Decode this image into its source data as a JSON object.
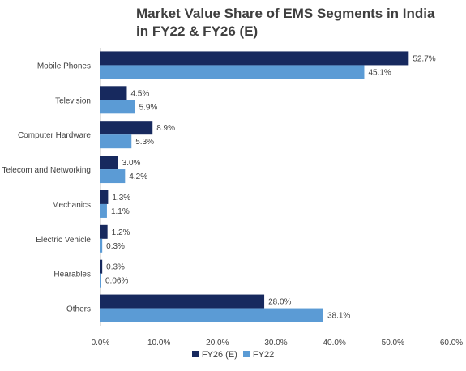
{
  "chart_data": {
    "type": "bar",
    "orientation": "horizontal",
    "title_lines": [
      "Market Value Share of EMS Segments in India",
      "in FY22 & FY26 (E)"
    ],
    "categories": [
      "Mobile Phones",
      "Television",
      "Computer Hardware",
      "Telecom and Networking",
      "Mechanics",
      "Electric Vehicle",
      "Hearables",
      "Others"
    ],
    "series": [
      {
        "name": "FY26 (E)",
        "color": "#17295e",
        "values": [
          52.7,
          4.5,
          8.9,
          3.0,
          1.3,
          1.2,
          0.3,
          28.0
        ],
        "labels": [
          "52.7%",
          "4.5%",
          "8.9%",
          "3.0%",
          "1.3%",
          "1.2%",
          "0.3%",
          "28.0%"
        ]
      },
      {
        "name": "FY22",
        "color": "#5b9bd5",
        "values": [
          45.1,
          5.9,
          5.3,
          4.2,
          1.1,
          0.3,
          0.06,
          38.1
        ],
        "labels": [
          "45.1%",
          "5.9%",
          "5.3%",
          "4.2%",
          "1.1%",
          "0.3%",
          "0.06%",
          "38.1%"
        ]
      }
    ],
    "xlim": [
      0,
      60
    ],
    "xticks": [
      "0.0%",
      "10.0%",
      "20.0%",
      "30.0%",
      "40.0%",
      "50.0%",
      "60.0%"
    ],
    "grid": false,
    "legend_position": "bottom"
  }
}
